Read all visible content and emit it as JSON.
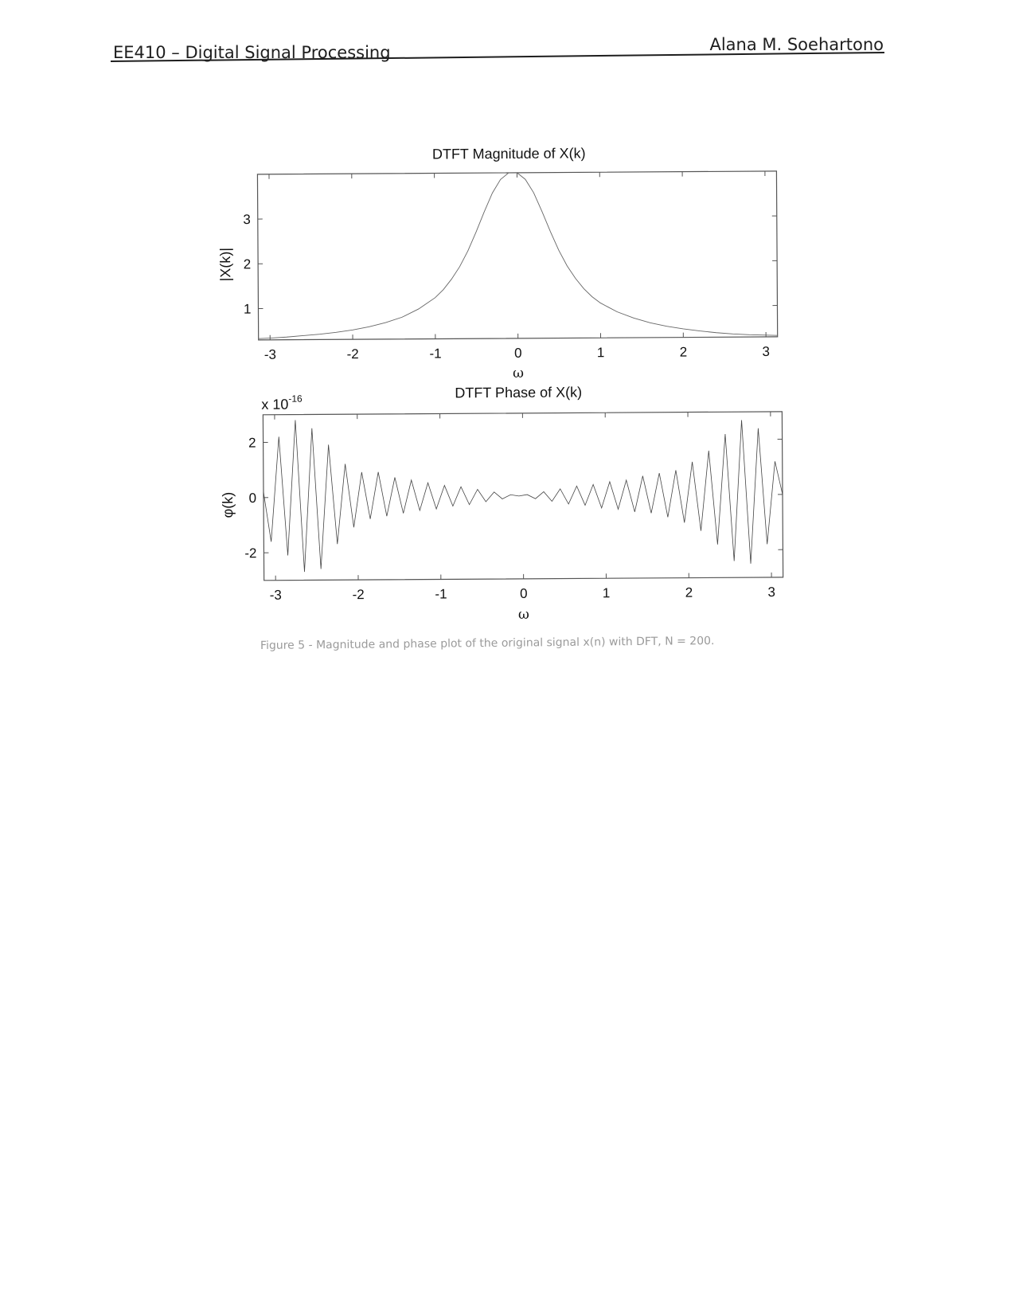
{
  "header": {
    "course": "EE410 – Digital Signal Processing",
    "author": "Alana M. Soehartono"
  },
  "chart_data": [
    {
      "type": "line",
      "title": "DTFT Magnitude of X(k)",
      "xlabel": "ω",
      "ylabel": "|X(k)|",
      "xlim": [
        -3.14,
        3.14
      ],
      "ylim": [
        0.3,
        4.0
      ],
      "x_ticks": [
        -3,
        -2,
        -1,
        0,
        1,
        2,
        3
      ],
      "y_ticks": [
        1,
        2,
        3
      ],
      "x_tick_labels": [
        "-3",
        "-2",
        "-1",
        "0",
        "1",
        "2",
        "3"
      ],
      "y_tick_labels": [
        "1",
        "2",
        "3"
      ],
      "grid": false,
      "series": [
        {
          "x": [
            -3.14,
            -3.0,
            -2.8,
            -2.6,
            -2.4,
            -2.2,
            -2.0,
            -1.8,
            -1.6,
            -1.4,
            -1.2,
            -1.0,
            -0.9,
            -0.8,
            -0.7,
            -0.6,
            -0.5,
            -0.4,
            -0.3,
            -0.2,
            -0.1,
            0.0,
            0.1,
            0.2,
            0.3,
            0.4,
            0.5,
            0.6,
            0.7,
            0.8,
            0.9,
            1.0,
            1.2,
            1.4,
            1.6,
            1.8,
            2.0,
            2.2,
            2.4,
            2.6,
            2.8,
            3.0,
            3.14
          ],
          "y": [
            0.33,
            0.34,
            0.36,
            0.39,
            0.42,
            0.46,
            0.51,
            0.58,
            0.67,
            0.79,
            0.97,
            1.22,
            1.4,
            1.63,
            1.91,
            2.26,
            2.68,
            3.13,
            3.55,
            3.85,
            4.0,
            4.0,
            3.85,
            3.55,
            3.13,
            2.68,
            2.26,
            1.91,
            1.63,
            1.4,
            1.22,
            1.08,
            0.88,
            0.74,
            0.63,
            0.55,
            0.49,
            0.44,
            0.4,
            0.37,
            0.35,
            0.34,
            0.33
          ]
        }
      ]
    },
    {
      "type": "line",
      "title": "DTFT Phase of X(k)",
      "xlabel": "ω",
      "ylabel": "φ(k)",
      "y_exponent_label": "x 10",
      "y_exponent_power": "-16",
      "xlim": [
        -3.14,
        3.14
      ],
      "ylim": [
        -3.0,
        3.0
      ],
      "x_ticks": [
        -3,
        -2,
        -1,
        0,
        1,
        2,
        3
      ],
      "y_ticks": [
        -2,
        0,
        2
      ],
      "x_tick_labels": [
        "-3",
        "-2",
        "-1",
        "0",
        "1",
        "2",
        "3"
      ],
      "y_tick_labels": [
        "-2",
        "0",
        "2"
      ],
      "grid": false,
      "series": [
        {
          "x": [
            -3.14,
            -3.05,
            -2.95,
            -2.85,
            -2.75,
            -2.65,
            -2.55,
            -2.45,
            -2.35,
            -2.25,
            -2.15,
            -2.05,
            -1.95,
            -1.85,
            -1.75,
            -1.65,
            -1.55,
            -1.45,
            -1.35,
            -1.25,
            -1.15,
            -1.05,
            -0.95,
            -0.85,
            -0.75,
            -0.65,
            -0.55,
            -0.45,
            -0.35,
            -0.25,
            -0.15,
            -0.05,
            0.05,
            0.15,
            0.25,
            0.35,
            0.45,
            0.55,
            0.65,
            0.75,
            0.85,
            0.95,
            1.05,
            1.15,
            1.25,
            1.35,
            1.45,
            1.55,
            1.65,
            1.75,
            1.85,
            1.95,
            2.05,
            2.15,
            2.25,
            2.35,
            2.45,
            2.55,
            2.65,
            2.75,
            2.85,
            2.95,
            3.05,
            3.14
          ],
          "y": [
            0.2,
            -1.6,
            2.2,
            -2.1,
            2.8,
            -2.7,
            2.5,
            -2.6,
            1.9,
            -1.7,
            1.2,
            -1.1,
            0.9,
            -0.8,
            0.9,
            -0.7,
            0.7,
            -0.6,
            0.6,
            -0.5,
            0.5,
            -0.45,
            0.4,
            -0.35,
            0.35,
            -0.3,
            0.25,
            -0.2,
            0.15,
            -0.1,
            0.05,
            0.0,
            0.05,
            -0.1,
            0.15,
            -0.2,
            0.25,
            -0.3,
            0.35,
            -0.35,
            0.4,
            -0.45,
            0.5,
            -0.5,
            0.55,
            -0.6,
            0.7,
            -0.65,
            0.8,
            -0.8,
            0.9,
            -1.0,
            1.2,
            -1.3,
            1.6,
            -1.8,
            2.2,
            -2.4,
            2.7,
            -2.5,
            2.4,
            -1.8,
            1.2,
            0.0
          ]
        }
      ]
    }
  ],
  "caption": "Figure 5 - Magnitude and phase plot of the original signal x(n) with DFT, N = 200."
}
